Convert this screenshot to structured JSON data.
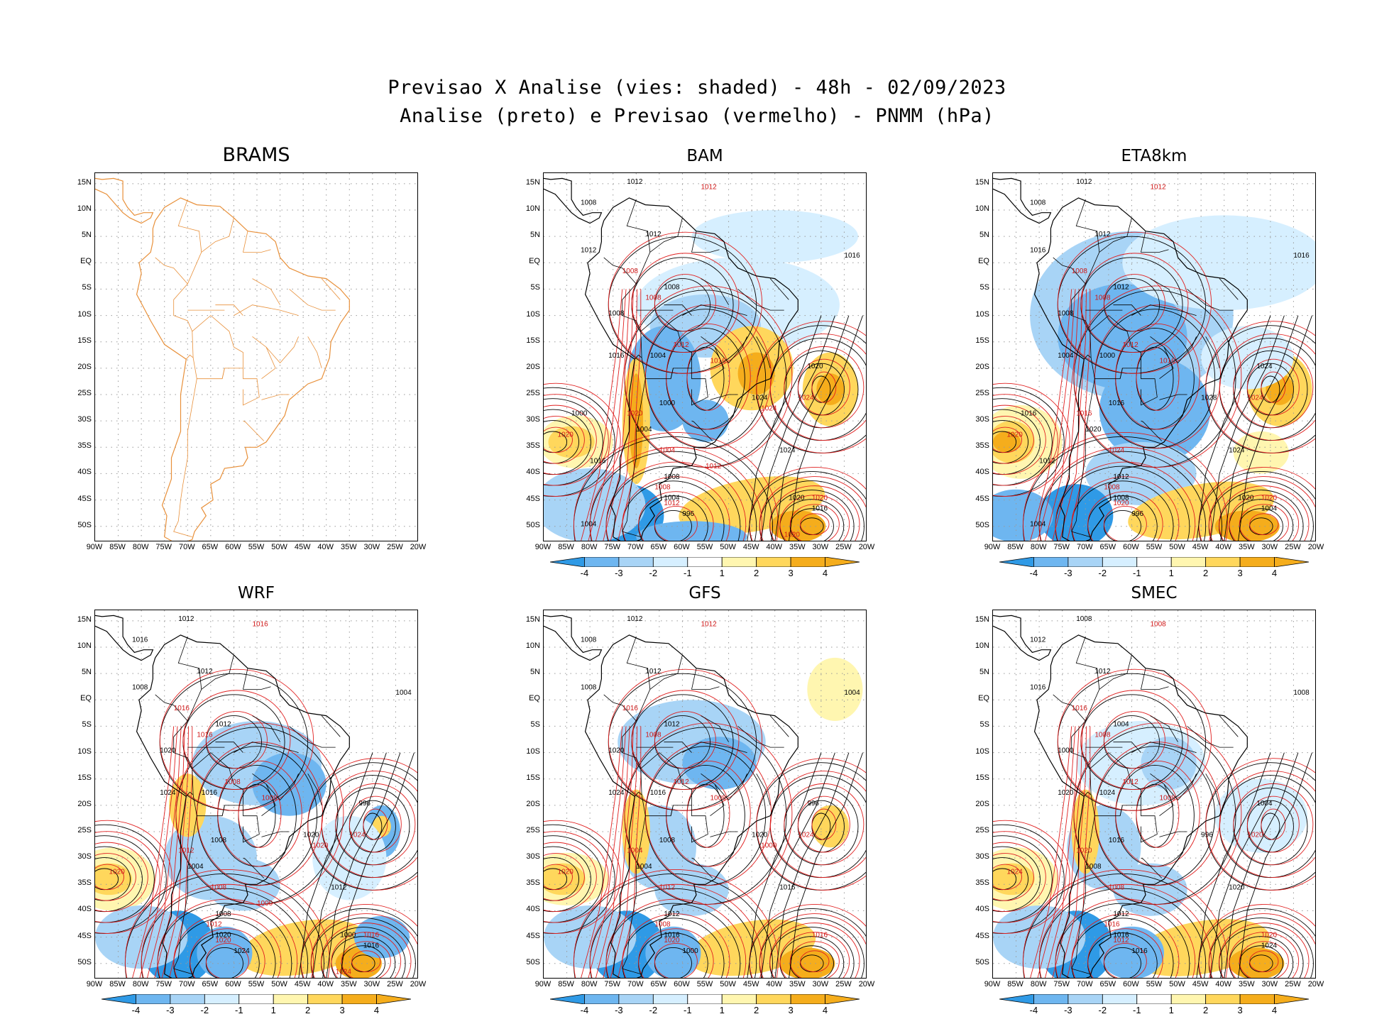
{
  "header": {
    "line1": "Previsao X Analise (vies: shaded) - 48h - 02/09/2023",
    "line2": "Analise (preto) e Previsao (vermelho) - PNMM (hPa)"
  },
  "axes": {
    "lat_labels": [
      "15N",
      "10N",
      "5N",
      "EQ",
      "5S",
      "10S",
      "15S",
      "20S",
      "25S",
      "30S",
      "35S",
      "40S",
      "45S",
      "50S"
    ],
    "lon_labels": [
      "90W",
      "85W",
      "80W",
      "75W",
      "70W",
      "65W",
      "60W",
      "55W",
      "50W",
      "45W",
      "40W",
      "35W",
      "30W",
      "25W",
      "20W"
    ],
    "lat_range": [
      -53,
      17
    ],
    "lon_range": [
      -90,
      -20
    ]
  },
  "colorbar": {
    "labels": [
      "-4",
      "-3",
      "-2",
      "-1",
      "1",
      "2",
      "3",
      "4"
    ],
    "colors": [
      "#2f9ae6",
      "#6eb6f0",
      "#a8d4f6",
      "#d6efff",
      "#ffffff",
      "#fff6b0",
      "#ffd75c",
      "#f5ad1c"
    ]
  },
  "colors": {
    "analysis_contour": "#000000",
    "forecast_contour": "#e02020",
    "coastline_brams": "#e8903a"
  },
  "panels": [
    {
      "name": "BRAMS",
      "has_data": false,
      "analysis_labels": [],
      "forecast_labels": []
    },
    {
      "name": "BAM",
      "has_data": true,
      "analysis_labels": [
        "1012",
        "1008",
        "1012",
        "1012",
        "1016",
        "1008",
        "1008",
        "1016",
        "1004",
        "1000",
        "1004",
        "1020",
        "1024",
        "1024",
        "1008",
        "1004",
        "996",
        "1016",
        "1020",
        "1016",
        "1000",
        "1004"
      ],
      "forecast_labels": [
        "1012",
        "1008",
        "1008",
        "1012",
        "1016",
        "1020",
        "1020",
        "1024",
        "1012",
        "1004",
        "1008",
        "1020",
        "1024",
        "1020",
        "1012"
      ]
    },
    {
      "name": "ETA8km",
      "has_data": true,
      "analysis_labels": [
        "1012",
        "1008",
        "1012",
        "1016",
        "1016",
        "1012",
        "1008",
        "1004",
        "1000",
        "1016",
        "1020",
        "1024",
        "1028",
        "1024",
        "1012",
        "1008",
        "996",
        "1004",
        "1020",
        "1012",
        "1016",
        "1004"
      ],
      "forecast_labels": [
        "1012",
        "1008",
        "1008",
        "1012",
        "1016",
        "1016",
        "1020",
        "1024",
        "1020",
        "1024",
        "1008",
        "1020"
      ]
    },
    {
      "name": "WRF",
      "has_data": true,
      "analysis_labels": [
        "1012",
        "1016",
        "1012",
        "1008",
        "1004",
        "1012",
        "1020",
        "1024",
        "1016",
        "1008",
        "1004",
        "996",
        "1020",
        "1012",
        "1008",
        "1020",
        "1024",
        "1016",
        "1000"
      ],
      "forecast_labels": [
        "1016",
        "1016",
        "1016",
        "1008",
        "1008",
        "1012",
        "1020",
        "1024",
        "1020",
        "1008",
        "1012",
        "1016",
        "1020",
        "1024",
        "1000"
      ]
    },
    {
      "name": "GFS",
      "has_data": true,
      "analysis_labels": [
        "1012",
        "1008",
        "1012",
        "1008",
        "1004",
        "1012",
        "1020",
        "1024",
        "1016",
        "1008",
        "1004",
        "996",
        "1020",
        "1016",
        "1012",
        "1016",
        "1000"
      ],
      "forecast_labels": [
        "1012",
        "1016",
        "1008",
        "1012",
        "1008",
        "1004",
        "1020",
        "1024",
        "1020",
        "1012",
        "1008",
        "1016",
        "1000"
      ]
    },
    {
      "name": "SMEC",
      "has_data": true,
      "analysis_labels": [
        "1008",
        "1012",
        "1012",
        "1016",
        "1008",
        "1004",
        "1000",
        "1020",
        "1024",
        "1016",
        "1008",
        "1004",
        "996",
        "1020",
        "1012",
        "1016",
        "1016",
        "1024"
      ],
      "forecast_labels": [
        "1008",
        "1016",
        "1008",
        "1012",
        "1008",
        "1020",
        "1024",
        "1020",
        "1012",
        "1008",
        "1016",
        "1020"
      ]
    }
  ]
}
